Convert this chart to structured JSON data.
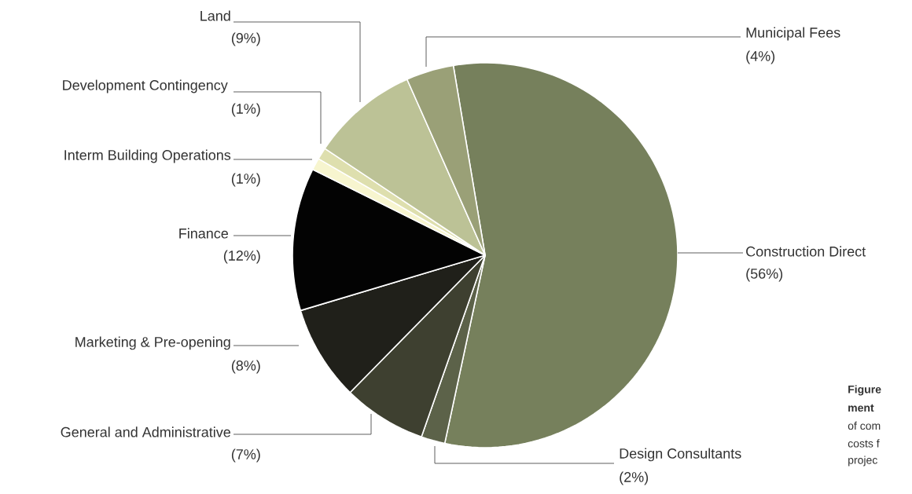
{
  "chart_data": {
    "type": "pie",
    "categories": [
      "Construction Direct",
      "Design Consultants",
      "General and Administrative",
      "Marketing & Pre-opening",
      "Finance",
      "Interm Building Operations",
      "Development Contingency",
      "Land",
      "Municipal Fees"
    ],
    "values": [
      56,
      2,
      7,
      8,
      12,
      1,
      1,
      9,
      4
    ],
    "value_labels": [
      "(56%)",
      "(2%)",
      "(7%)",
      "(8%)",
      "(12%)",
      "(1%)",
      "(1%)",
      "(9%)",
      "(4%)"
    ],
    "colors": [
      "#76805c",
      "#5c6249",
      "#3e4030",
      "#20201a",
      "#030303",
      "#f7f5cf",
      "#dedfae",
      "#bcc296",
      "#9aa077"
    ],
    "annotations": [
      "**Figure**",
      "**ment**",
      "of com",
      "costs f",
      "projec"
    ]
  }
}
